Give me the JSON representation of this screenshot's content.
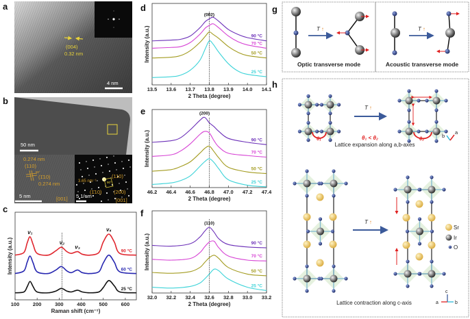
{
  "panel_labels": {
    "a": "a",
    "b": "b",
    "c": "c",
    "d": "d",
    "e": "e",
    "f": "f",
    "g": "g",
    "h": "h"
  },
  "panel_a": {
    "plane": "(004)",
    "spacing": "0.32 nm",
    "scale_bar": "4 nm"
  },
  "panel_b": {
    "scale_bar_top": "50 nm",
    "hrtem": {
      "spacing1": "0.274 nm",
      "plane1": "(110)",
      "angle": "90°",
      "plane2": "(1̄10)",
      "spacing2": "0.274 nm",
      "scale_bar": "5 nm",
      "zone": "[001]"
    },
    "saed": {
      "distance": "3.65 nm⁻¹",
      "plane1": "(110)",
      "angle": "90°",
      "plane2": "(1̄10)",
      "plane3": "(200)",
      "scale_bar": "5 1/nm",
      "zone": "[001]"
    }
  },
  "colors": {
    "c_90": "#e0262e",
    "c_60": "#2626b0",
    "c_25": "#111111",
    "x_90": "#6b2fb8",
    "x_70": "#d641d4",
    "x_50": "#a39b1f",
    "x_25": "#3cd3d8"
  },
  "chart_data": [
    {
      "id": "c",
      "type": "line",
      "xlabel": "Raman shift (cm⁻¹)",
      "ylabel": "Intensity (a.u.)",
      "xlim": [
        100,
        650
      ],
      "ylim": [
        0,
        1
      ],
      "xticks": [
        100,
        200,
        300,
        400,
        500,
        600
      ],
      "grid": false,
      "reference_line_x": 313,
      "peak_labels": [
        {
          "text": "ν₁",
          "x": 168
        },
        {
          "text": "ν₂",
          "x": 313
        },
        {
          "text": "ν₃",
          "x": 383
        },
        {
          "text": "ν₄",
          "x": 525
        }
      ],
      "x": [
        100,
        140,
        155,
        168,
        182,
        200,
        250,
        285,
        310,
        335,
        355,
        383,
        405,
        440,
        480,
        500,
        525,
        550,
        575,
        650
      ],
      "series": [
        {
          "name": "90 °C",
          "color": "#e0262e",
          "values": [
            0.51,
            0.54,
            0.65,
            0.72,
            0.63,
            0.53,
            0.51,
            0.56,
            0.6,
            0.55,
            0.53,
            0.55,
            0.52,
            0.51,
            0.54,
            0.66,
            0.75,
            0.66,
            0.53,
            0.51
          ]
        },
        {
          "name": "60 °C",
          "color": "#2626b0",
          "values": [
            0.3,
            0.33,
            0.43,
            0.5,
            0.42,
            0.32,
            0.3,
            0.34,
            0.38,
            0.33,
            0.31,
            0.34,
            0.31,
            0.3,
            0.32,
            0.42,
            0.51,
            0.43,
            0.32,
            0.3
          ]
        },
        {
          "name": "25 °C",
          "color": "#111111",
          "values": [
            0.08,
            0.09,
            0.15,
            0.21,
            0.15,
            0.09,
            0.08,
            0.1,
            0.13,
            0.1,
            0.09,
            0.11,
            0.09,
            0.08,
            0.09,
            0.14,
            0.22,
            0.16,
            0.09,
            0.08
          ]
        }
      ]
    },
    {
      "id": "d",
      "type": "line",
      "xlabel": "2 Theta (degree)",
      "ylabel": "Intensity (a.u.)",
      "xlim": [
        13.5,
        14.1
      ],
      "ylim": [
        0,
        1
      ],
      "xticks": [
        "13.5",
        "13.6",
        "13.7",
        "13.8",
        "13.9",
        "14.0",
        "14.1"
      ],
      "grid": false,
      "reference_line_x": 13.8,
      "peak_labels": [
        {
          "text": "(002)",
          "x": 13.8
        }
      ],
      "x": [
        13.5,
        13.6,
        13.65,
        13.7,
        13.75,
        13.78,
        13.8,
        13.82,
        13.85,
        13.9,
        13.95,
        14.0,
        14.1
      ],
      "series": [
        {
          "name": "90 °C",
          "color": "#6b2fb8",
          "values": [
            0.54,
            0.55,
            0.56,
            0.6,
            0.7,
            0.78,
            0.81,
            0.83,
            0.78,
            0.68,
            0.62,
            0.58,
            0.54
          ]
        },
        {
          "name": "70 °C",
          "color": "#d641d4",
          "values": [
            0.45,
            0.46,
            0.47,
            0.52,
            0.62,
            0.7,
            0.73,
            0.75,
            0.7,
            0.6,
            0.53,
            0.49,
            0.45
          ]
        },
        {
          "name": "50 °C",
          "color": "#a39b1f",
          "values": [
            0.33,
            0.34,
            0.36,
            0.42,
            0.52,
            0.6,
            0.65,
            0.62,
            0.57,
            0.47,
            0.4,
            0.36,
            0.33
          ]
        },
        {
          "name": "25 °C",
          "color": "#3cd3d8",
          "values": [
            0.09,
            0.1,
            0.12,
            0.18,
            0.3,
            0.45,
            0.54,
            0.5,
            0.4,
            0.26,
            0.17,
            0.13,
            0.1
          ]
        }
      ]
    },
    {
      "id": "e",
      "type": "line",
      "xlabel": "2 Theta (degree)",
      "ylabel": "Intensity (a.u.)",
      "xlim": [
        46.2,
        47.4
      ],
      "ylim": [
        0,
        1
      ],
      "xticks": [
        "46.2",
        "46.4",
        "46.6",
        "46.8",
        "47.0",
        "47.2",
        "47.4"
      ],
      "grid": false,
      "reference_line_x": 46.8,
      "peak_labels": [
        {
          "text": "(200)",
          "x": 46.75
        }
      ],
      "x": [
        46.2,
        46.4,
        46.5,
        46.6,
        46.7,
        46.75,
        46.8,
        46.85,
        46.9,
        47.0,
        47.2,
        47.4
      ],
      "series": [
        {
          "name": "90 °C",
          "color": "#6b2fb8",
          "values": [
            0.58,
            0.6,
            0.64,
            0.74,
            0.86,
            0.9,
            0.83,
            0.78,
            0.72,
            0.63,
            0.58,
            0.55
          ]
        },
        {
          "name": "70 °C",
          "color": "#d641d4",
          "values": [
            0.4,
            0.42,
            0.47,
            0.56,
            0.68,
            0.72,
            0.7,
            0.6,
            0.52,
            0.44,
            0.41,
            0.39
          ]
        },
        {
          "name": "50 °C",
          "color": "#a39b1f",
          "values": [
            0.21,
            0.23,
            0.27,
            0.33,
            0.44,
            0.5,
            0.53,
            0.46,
            0.38,
            0.26,
            0.2,
            0.18
          ]
        },
        {
          "name": "25 °C",
          "color": "#3cd3d8",
          "values": [
            0.04,
            0.06,
            0.09,
            0.15,
            0.27,
            0.33,
            0.37,
            0.32,
            0.24,
            0.1,
            0.03,
            0.01
          ]
        }
      ]
    },
    {
      "id": "f",
      "type": "line",
      "xlabel": "2 Theta (degree)",
      "ylabel": "Intensity (a.u.)",
      "xlim": [
        32.0,
        33.2
      ],
      "ylim": [
        0,
        1
      ],
      "xticks": [
        "32.0",
        "32.2",
        "32.4",
        "32.6",
        "32.8",
        "33.0",
        "33.2"
      ],
      "grid": false,
      "reference_line_x": 32.6,
      "peak_labels": [
        {
          "text": "(110)",
          "x": 32.6
        }
      ],
      "x": [
        32.0,
        32.2,
        32.4,
        32.5,
        32.55,
        32.6,
        32.65,
        32.7,
        32.8,
        33.0,
        33.2
      ],
      "series": [
        {
          "name": "90 °C",
          "color": "#6b2fb8",
          "values": [
            0.58,
            0.57,
            0.6,
            0.68,
            0.75,
            0.8,
            0.74,
            0.66,
            0.59,
            0.56,
            0.55
          ]
        },
        {
          "name": "70 °C",
          "color": "#d641d4",
          "values": [
            0.41,
            0.4,
            0.42,
            0.49,
            0.56,
            0.62,
            0.63,
            0.55,
            0.45,
            0.4,
            0.39
          ]
        },
        {
          "name": "50 °C",
          "color": "#a39b1f",
          "values": [
            0.25,
            0.24,
            0.26,
            0.31,
            0.37,
            0.43,
            0.46,
            0.42,
            0.31,
            0.23,
            0.21
          ]
        },
        {
          "name": "25 °C",
          "color": "#3cd3d8",
          "values": [
            0.07,
            0.06,
            0.08,
            0.12,
            0.17,
            0.23,
            0.29,
            0.27,
            0.17,
            0.07,
            0.03
          ]
        }
      ]
    }
  ],
  "panel_g": {
    "temp_label": "T",
    "temp_arrow": "↑",
    "optic": "Optic transverse mode",
    "acoustic": "Acoustic transverse mode"
  },
  "panel_h": {
    "temp_label": "T",
    "temp_arrow": "↑",
    "theta1": "θ₁",
    "theta2": "θ₂",
    "theta_relation": "θ₁ < θ₂",
    "expansion_caption": "Lattice expansion along a,b-axes",
    "contraction_caption": "Lattice contraction along c-axis",
    "axes_top": {
      "b": "b",
      "a": "a"
    },
    "axes_bottom": {
      "c": "c",
      "a": "a",
      "b": "b"
    },
    "legend": {
      "sr": "Sr",
      "ir": "Ir",
      "o": "O"
    }
  }
}
